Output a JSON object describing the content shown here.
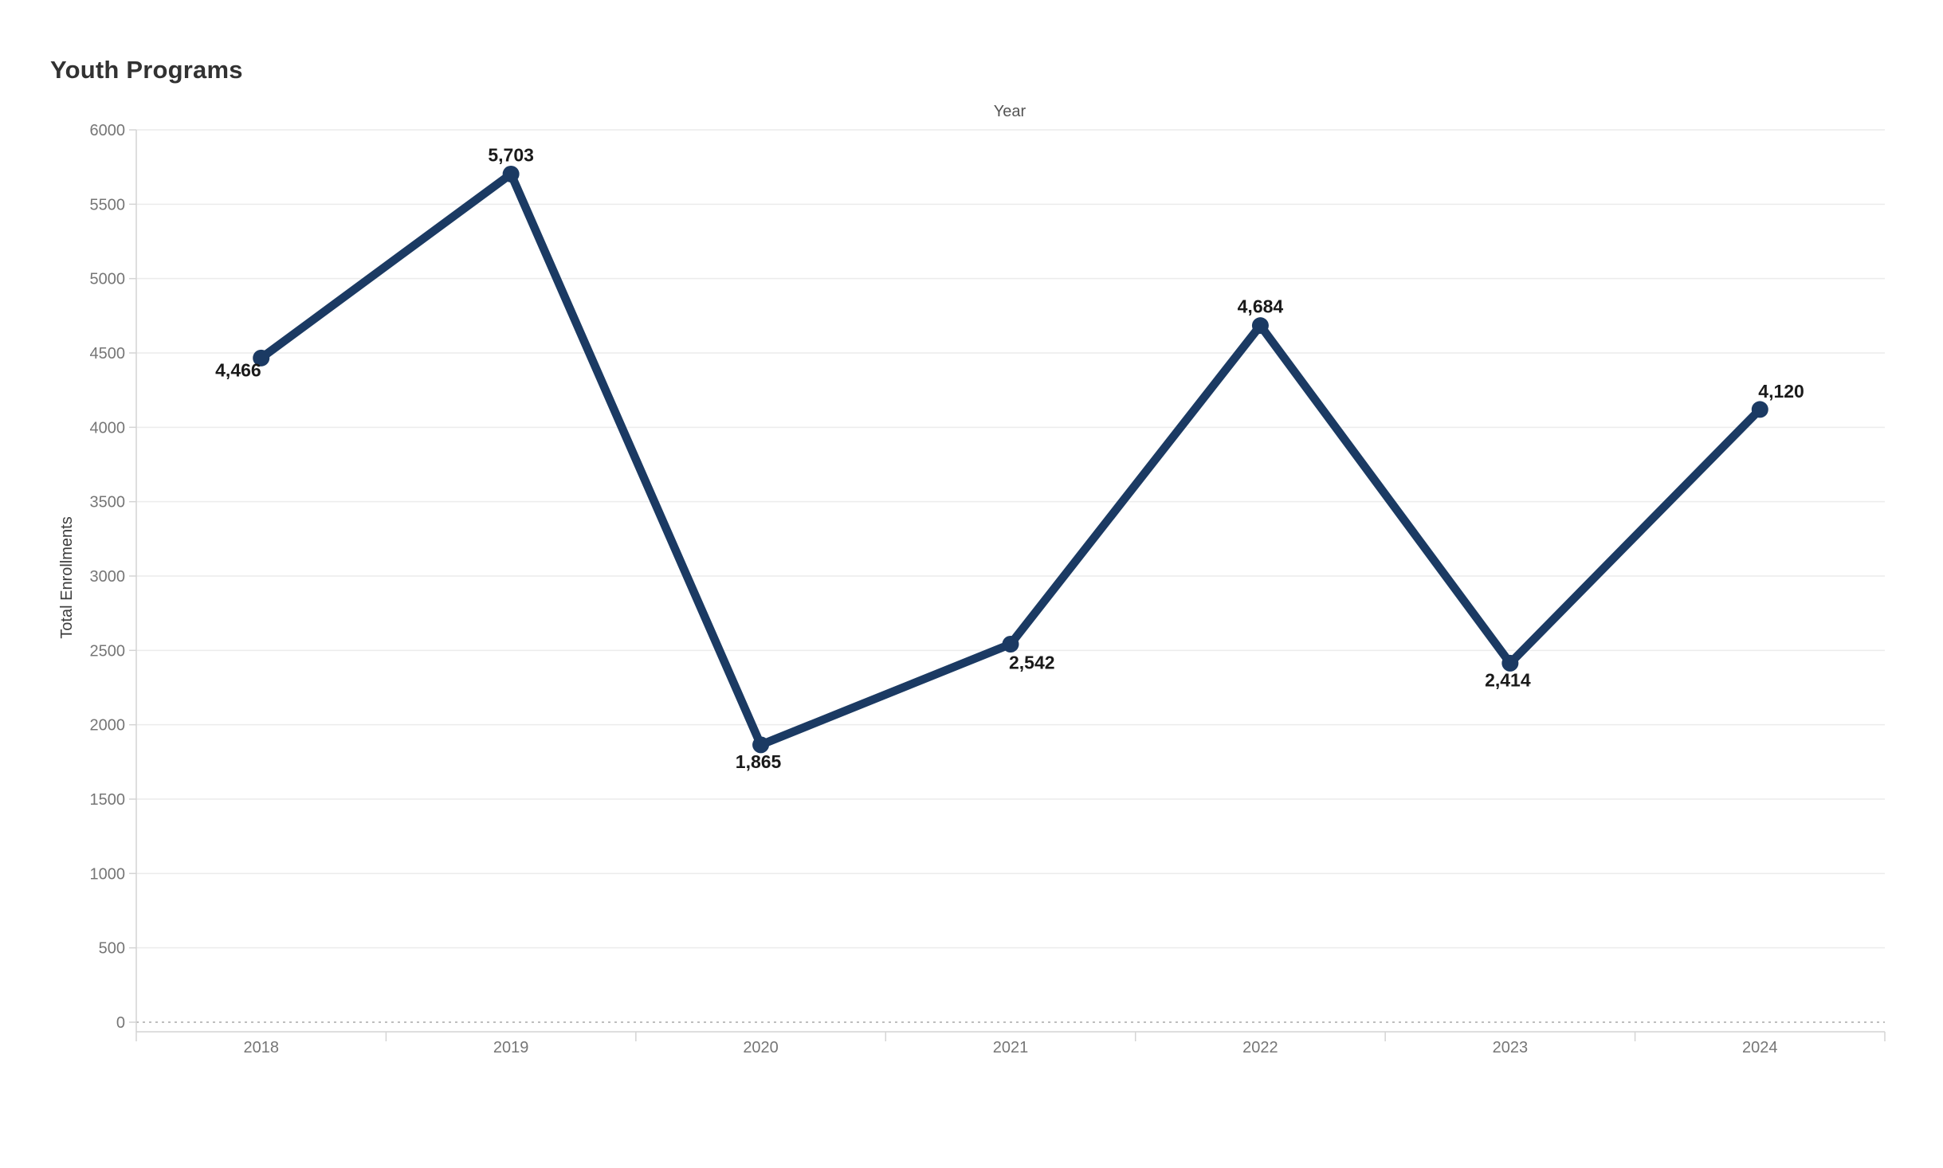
{
  "chart_data": {
    "type": "line",
    "title": "Youth Programs",
    "x_axis_title": "Year",
    "ylabel": "Total Enrollments",
    "xlabel": "Year",
    "categories": [
      "2018",
      "2019",
      "2020",
      "2021",
      "2022",
      "2023",
      "2024"
    ],
    "series": [
      {
        "name": "Total Enrollments",
        "values": [
          4466,
          5703,
          1865,
          2542,
          4684,
          2414,
          4120
        ],
        "point_labels": [
          "4,466",
          "5,703",
          "1,865",
          "2,542",
          "4,684",
          "2,414",
          "4,120"
        ],
        "label_placements": [
          "below-left",
          "above",
          "below",
          "below-right",
          "above",
          "below",
          "above-right"
        ]
      }
    ],
    "ylim": [
      0,
      6000
    ],
    "y_ticks": [
      0,
      500,
      1000,
      1500,
      2000,
      2500,
      3000,
      3500,
      4000,
      4500,
      5000,
      5500,
      6000
    ],
    "y_tick_labels": [
      "0",
      "500",
      "1000",
      "1500",
      "2000",
      "2500",
      "3000",
      "3500",
      "4000",
      "4500",
      "5000",
      "5500",
      "6000"
    ],
    "grid": true,
    "legend": "none",
    "zero_line_style": "dotted",
    "marker": "circle",
    "colors": {
      "line": "#1b3a63",
      "marker": "#1b3a63",
      "data_label": "#1a1a1a",
      "tick_label": "#767676",
      "x_axis_title": "#555555",
      "y_axis_title": "#3d3d3d",
      "title": "#323232",
      "gridline": "#ececec",
      "axis_line": "#d4d4d4",
      "zero_line": "#a8a8a8",
      "background": "#ffffff"
    }
  }
}
